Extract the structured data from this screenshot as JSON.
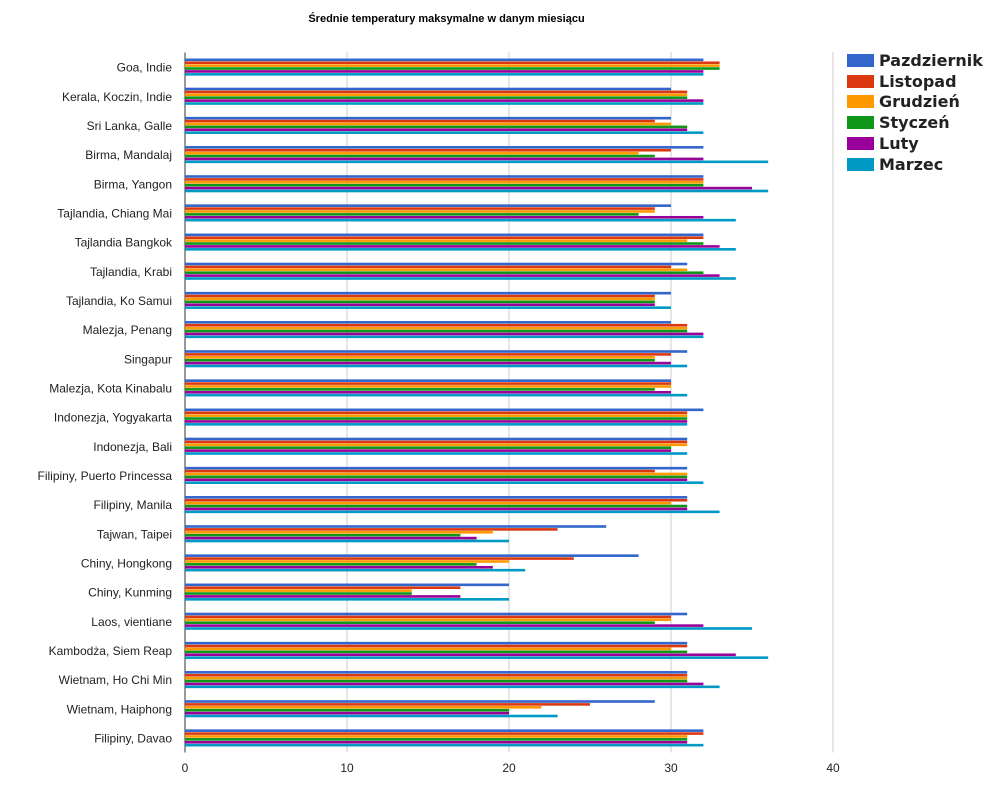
{
  "chart_data": {
    "type": "bar",
    "orientation": "horizontal",
    "title": "Średnie temperatury maksymalne w danym miesiącu",
    "xlabel": "",
    "ylabel": "",
    "xlim": [
      0,
      40
    ],
    "xticks": [
      "0",
      "10",
      "20",
      "30",
      "40"
    ],
    "grid": true,
    "legend_position": "right",
    "categories": [
      "Goa, Indie",
      "Kerala, Koczin, Indie",
      "Sri Lanka, Galle",
      "Birma, Mandalaj",
      "Birma, Yangon",
      "Tajlandia, Chiang Mai",
      "Tajlandia Bangkok",
      "Tajlandia, Krabi",
      "Tajlandia, Ko Samui",
      "Malezja, Penang",
      "Singapur",
      "Malezja, Kota Kinabalu",
      "Indonezja, Yogyakarta",
      "Indonezja, Bali",
      "Filipiny, Puerto Princessa",
      "Filipiny, Manila",
      "Tajwan, Taipei",
      "Chiny, Hongkong",
      "Chiny, Kunming",
      "Laos, vientiane",
      "Kambodża, Siem Reap",
      "Wietnam, Ho Chi Min",
      "Wietnam, Haiphong",
      "Filipiny, Davao"
    ],
    "series": [
      {
        "name": "Pazdziernik",
        "color": "#3366cc",
        "values": [
          32,
          30,
          30,
          32,
          32,
          30,
          32,
          31,
          30,
          30,
          31,
          30,
          32,
          31,
          31,
          31,
          26,
          28,
          20,
          31,
          31,
          31,
          29,
          32
        ]
      },
      {
        "name": "Listopad",
        "color": "#dc3912",
        "values": [
          33,
          31,
          29,
          30,
          32,
          29,
          32,
          30,
          29,
          31,
          30,
          30,
          31,
          31,
          29,
          31,
          23,
          24,
          17,
          30,
          31,
          31,
          25,
          32
        ]
      },
      {
        "name": "Grudzień",
        "color": "#ff9900",
        "values": [
          33,
          31,
          30,
          28,
          32,
          29,
          31,
          31,
          29,
          31,
          29,
          30,
          31,
          31,
          31,
          30,
          19,
          20,
          14,
          30,
          30,
          31,
          22,
          31
        ]
      },
      {
        "name": "Styczeń",
        "color": "#109618",
        "values": [
          33,
          31,
          31,
          29,
          32,
          28,
          32,
          32,
          29,
          31,
          29,
          29,
          31,
          30,
          31,
          31,
          17,
          18,
          14,
          29,
          31,
          31,
          20,
          31
        ]
      },
      {
        "name": "Luty",
        "color": "#990099",
        "values": [
          32,
          32,
          31,
          32,
          35,
          32,
          33,
          33,
          29,
          32,
          30,
          30,
          31,
          30,
          31,
          31,
          18,
          19,
          17,
          32,
          34,
          32,
          20,
          31
        ]
      },
      {
        "name": "Marzec",
        "color": "#0099c6",
        "values": [
          32,
          32,
          32,
          36,
          36,
          34,
          34,
          34,
          30,
          32,
          31,
          31,
          31,
          31,
          32,
          33,
          20,
          21,
          20,
          35,
          36,
          33,
          23,
          32
        ]
      }
    ]
  }
}
